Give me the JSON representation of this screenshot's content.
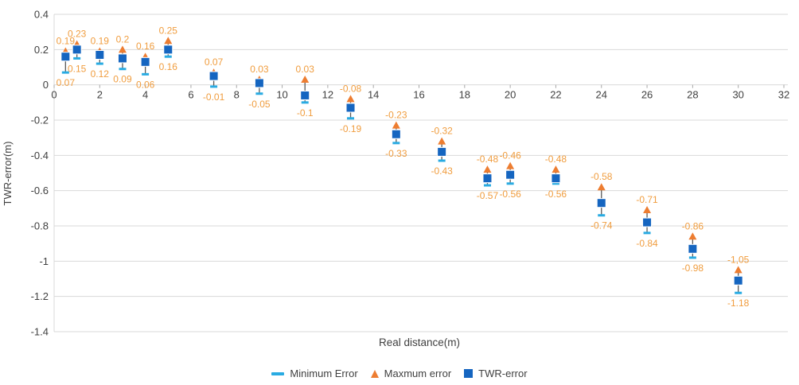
{
  "chart_data": {
    "type": "scatter",
    "title": "",
    "xlabel": "Real distance(m)",
    "ylabel": "TWR-error(m)",
    "xlim": [
      0,
      32
    ],
    "ylim": [
      -1.4,
      0.4
    ],
    "x_ticks": [
      0,
      2,
      4,
      6,
      8,
      10,
      12,
      14,
      16,
      18,
      20,
      22,
      24,
      26,
      28,
      30,
      32
    ],
    "y_ticks": [
      0.4,
      0.2,
      0,
      -0.2,
      -0.4,
      -0.6,
      -0.8,
      -1,
      -1.2,
      -1.4
    ],
    "y_tick_labels": [
      "0.4",
      "0.2",
      "0",
      "-0.2",
      "-0.4",
      "-0.6",
      "-0.8",
      "-1",
      "-1.2",
      "-1.4"
    ],
    "grid": "horizontal-only",
    "legend_position": "bottom-center",
    "x": [
      0.5,
      1,
      2,
      3,
      4,
      5,
      7,
      9,
      11,
      13,
      15,
      17,
      19,
      20,
      22,
      24,
      26,
      28,
      30
    ],
    "series": [
      {
        "name": "Minimum Error",
        "marker": "dash",
        "color": "#29ABE2",
        "values": [
          0.07,
          0.15,
          0.12,
          0.09,
          0.06,
          0.16,
          -0.01,
          -0.05,
          -0.1,
          -0.19,
          -0.33,
          -0.43,
          -0.57,
          -0.56,
          -0.56,
          -0.74,
          -0.84,
          -0.98,
          -1.18
        ]
      },
      {
        "name": "Maxmum error",
        "marker": "triangle",
        "color": "#ED7D31",
        "values": [
          0.19,
          0.23,
          0.19,
          0.2,
          0.16,
          0.25,
          0.07,
          0.03,
          0.03,
          -0.08,
          -0.23,
          -0.32,
          -0.48,
          -0.46,
          -0.48,
          -0.58,
          -0.71,
          -0.86,
          -1.05
        ]
      },
      {
        "name": "TWR-error",
        "marker": "square",
        "color": "#1565C0",
        "values": [
          0.16,
          0.2,
          0.17,
          0.15,
          0.13,
          0.2,
          0.05,
          0.01,
          -0.06,
          -0.13,
          -0.28,
          -0.38,
          -0.53,
          -0.51,
          -0.53,
          -0.67,
          -0.78,
          -0.93,
          -1.11
        ]
      }
    ],
    "max_labels": [
      "0.19",
      "0.23",
      "0.19",
      "0.2",
      "0.16",
      "0.25",
      "0.07",
      "0.03",
      "0.03",
      "-0.08",
      "-0.23",
      "-0.32",
      "-0.48",
      "-0.46",
      "-0.48",
      "-0.58",
      "-0.71",
      "-0.86",
      "-1,05"
    ],
    "min_labels": [
      "0.07",
      "0.15",
      "0.12",
      "0.09",
      "0.06",
      "0.16",
      "-0.01",
      "-0.05",
      "-0.1",
      "-0.19",
      "-0.33",
      "-0.43",
      "-0.57",
      "-0.56",
      "-0.56",
      "-0.74",
      "-0.84",
      "-0.98",
      "-1.18"
    ],
    "label_color": "#F09D3F",
    "error_bar_color": "#595959",
    "grid_color": "#D9D9D9",
    "axis_text_color": "#404040"
  }
}
